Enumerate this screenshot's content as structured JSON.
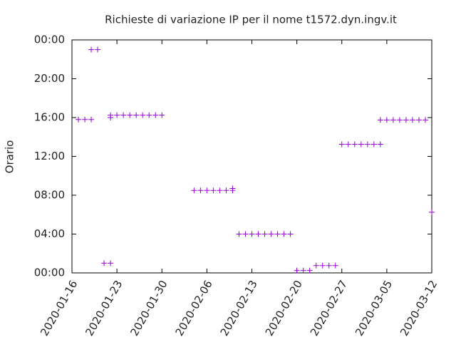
{
  "chart_data": {
    "type": "scatter",
    "title": "Richieste di variazione IP per il nome t1572.dyn.ingv.it",
    "y_label": "Orario",
    "series": [
      {
        "color": "#9400d3",
        "x": [
          "2020-01-17",
          "2020-01-18",
          "2020-01-19",
          "2020-01-19",
          "2020-01-20",
          "2020-01-21",
          "2020-01-22",
          "2020-01-22",
          "2020-01-22",
          "2020-01-23",
          "2020-01-24",
          "2020-01-25",
          "2020-01-26",
          "2020-01-27",
          "2020-01-28",
          "2020-01-29",
          "2020-01-30",
          "2020-02-04",
          "2020-02-05",
          "2020-02-06",
          "2020-02-07",
          "2020-02-08",
          "2020-02-09",
          "2020-02-10",
          "2020-02-10",
          "2020-02-11",
          "2020-02-12",
          "2020-02-13",
          "2020-02-14",
          "2020-02-15",
          "2020-02-16",
          "2020-02-17",
          "2020-02-18",
          "2020-02-19",
          "2020-02-20",
          "2020-02-21",
          "2020-02-22",
          "2020-02-23",
          "2020-02-24",
          "2020-02-25",
          "2020-02-26",
          "2020-02-27",
          "2020-02-28",
          "2020-02-29",
          "2020-03-01",
          "2020-03-02",
          "2020-03-03",
          "2020-03-04",
          "2020-03-04",
          "2020-03-05",
          "2020-03-06",
          "2020-03-07",
          "2020-03-08",
          "2020-03-09",
          "2020-03-10",
          "2020-03-11",
          "2020-03-12"
        ],
        "values": [
          15.8,
          15.8,
          15.8,
          23.0,
          23.0,
          1.0,
          1.0,
          16.0,
          16.25,
          16.25,
          16.25,
          16.25,
          16.25,
          16.25,
          16.25,
          16.25,
          16.25,
          8.5,
          8.5,
          8.5,
          8.5,
          8.5,
          8.5,
          8.5,
          8.7,
          4.0,
          4.0,
          4.0,
          4.0,
          4.0,
          4.0,
          4.0,
          4.0,
          4.0,
          0.25,
          0.25,
          0.25,
          0.75,
          0.75,
          0.75,
          0.75,
          13.25,
          13.25,
          13.25,
          13.25,
          13.25,
          13.25,
          13.25,
          15.75,
          15.75,
          15.75,
          15.75,
          15.75,
          15.75,
          15.75,
          15.75,
          6.25
        ]
      }
    ],
    "xlim": [
      "2020-01-16",
      "2020-03-12"
    ],
    "xticks": [
      "2020-01-16",
      "2020-01-23",
      "2020-01-30",
      "2020-02-06",
      "2020-02-13",
      "2020-02-20",
      "2020-02-27",
      "2020-03-05",
      "2020-03-12"
    ],
    "ylim": [
      0,
      24
    ],
    "yticks": [
      {
        "value": 0,
        "label": "00:00"
      },
      {
        "value": 4,
        "label": "04:00"
      },
      {
        "value": 8,
        "label": "08:00"
      },
      {
        "value": 12,
        "label": "12:00"
      },
      {
        "value": 16,
        "label": "16:00"
      },
      {
        "value": 20,
        "label": "20:00"
      },
      {
        "value": 24,
        "label": "00:00"
      }
    ]
  }
}
